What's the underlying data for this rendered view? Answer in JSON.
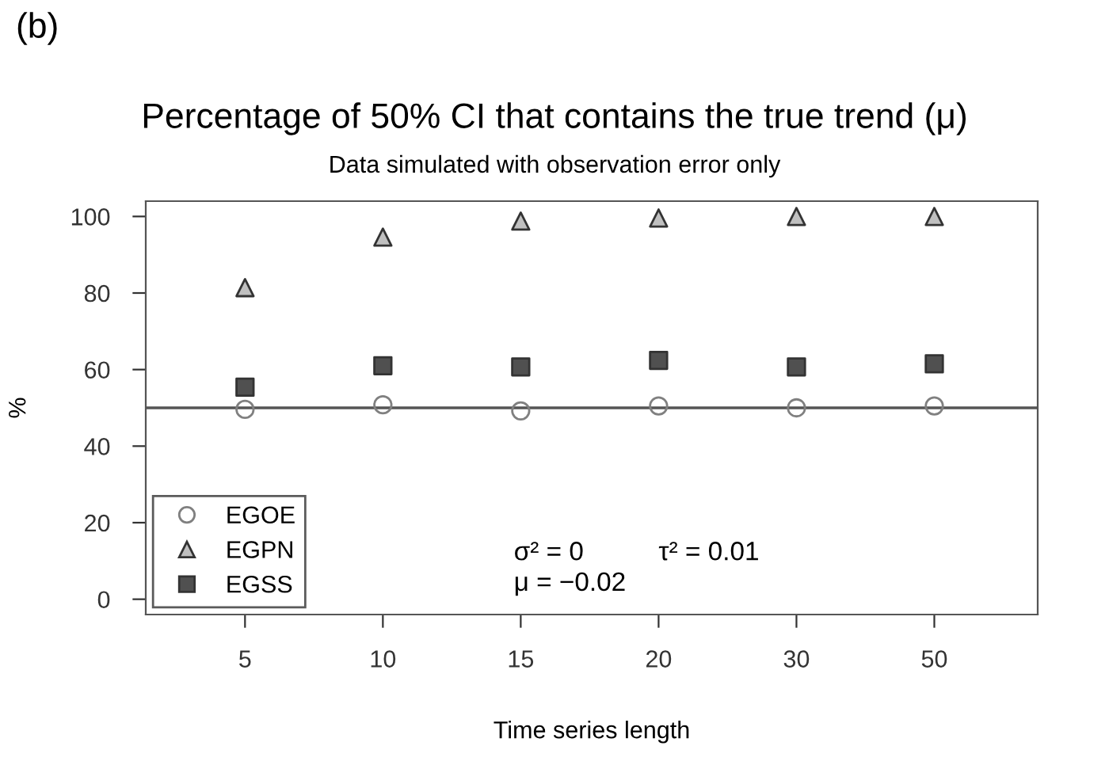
{
  "chart_data": {
    "type": "scatter",
    "title": "Percentage of 50% CI that contains the true trend (μ)",
    "subtitle": "Data simulated with observation error only",
    "xlabel": "Time series length",
    "ylabel": "%",
    "categories": [
      "5",
      "10",
      "15",
      "20",
      "30",
      "50"
    ],
    "series": [
      {
        "name": "EGOE",
        "color": "#808080",
        "marker": "circle",
        "values": [
          49.6,
          50.8,
          49.2,
          50.5,
          50,
          50.5
        ]
      },
      {
        "name": "EGPN",
        "color": "#c0c0c0",
        "marker": "triangle",
        "values": [
          81.4,
          94.6,
          98.8,
          99.6,
          100,
          100
        ]
      },
      {
        "name": "EGSS",
        "color": "#505050",
        "marker": "square",
        "values": [
          55.4,
          61,
          60.7,
          62.4,
          60.7,
          61.5
        ]
      }
    ],
    "ylim": [
      -4,
      104
    ],
    "yticks": [
      0,
      20,
      40,
      60,
      80,
      100
    ],
    "ref_lines": [
      {
        "axis": "y",
        "value": 50,
        "color": "#555555"
      }
    ],
    "annotations": [
      "(b)",
      "σ² = 0",
      "τ² = 0.01",
      "μ = −0.02"
    ],
    "grid": false,
    "legend": "bottom left"
  }
}
